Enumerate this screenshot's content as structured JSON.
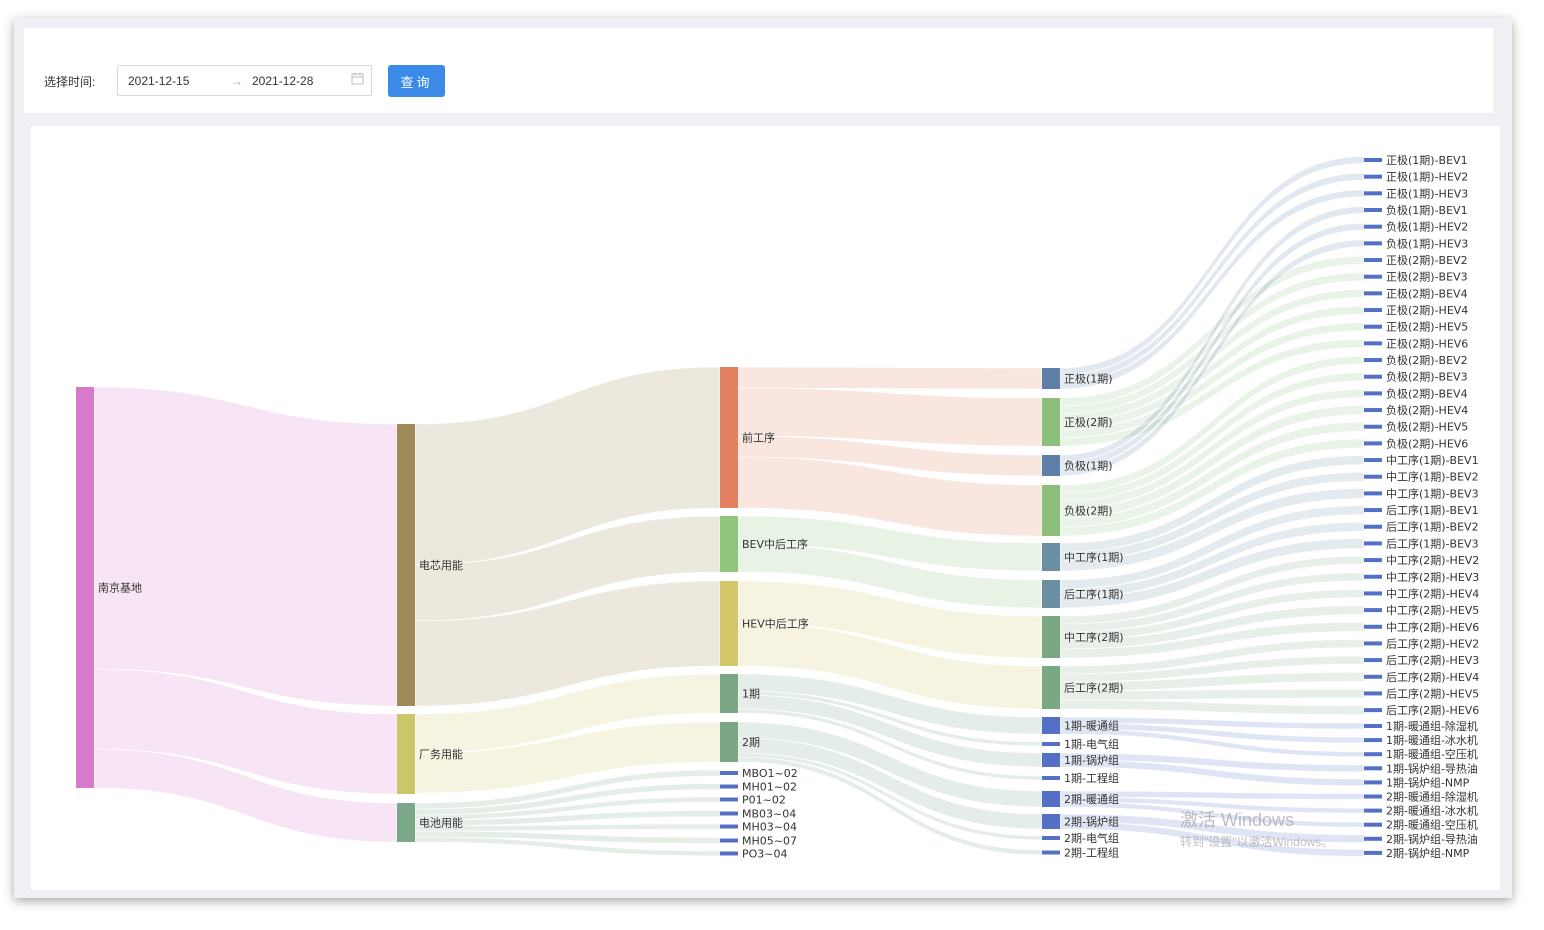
{
  "filter": {
    "label": "选择时间:",
    "start": "2021-12-15",
    "separator": "→",
    "end": "2021-12-28",
    "calendar_icon": "calendar-icon",
    "query_button": "查询"
  },
  "windows_watermark": {
    "line1": "激活 Windows",
    "line2": "转到\"设置\"以激活Windows。"
  },
  "watermark_logo": "SOFT 新打造智慧工厂",
  "chart_data": {
    "type": "sankey",
    "title": "",
    "nodes": [
      {
        "name": "南京基地",
        "level": 0,
        "color": "#d77ac9"
      },
      {
        "name": "电芯用能",
        "level": 1,
        "color": "#a08a5b"
      },
      {
        "name": "厂务用能",
        "level": 1,
        "color": "#c8c76a"
      },
      {
        "name": "电池用能",
        "level": 1,
        "color": "#7aa889"
      },
      {
        "name": "前工序",
        "level": 2,
        "color": "#e2805f"
      },
      {
        "name": "BEV中后工序",
        "level": 2,
        "color": "#8fc57d"
      },
      {
        "name": "HEV中后工序",
        "level": 2,
        "color": "#d2c86a"
      },
      {
        "name": "1期",
        "level": 2,
        "color": "#7aa685"
      },
      {
        "name": "2期",
        "level": 2,
        "color": "#7aa685"
      },
      {
        "name": "MBO1~02",
        "level": 2,
        "color": "#5470c6"
      },
      {
        "name": "MH01~02",
        "level": 2,
        "color": "#5470c6"
      },
      {
        "name": "P01~02",
        "level": 2,
        "color": "#5470c6"
      },
      {
        "name": "MB03~04",
        "level": 2,
        "color": "#5470c6"
      },
      {
        "name": "MH03~04",
        "level": 2,
        "color": "#5470c6"
      },
      {
        "name": "MH05~07",
        "level": 2,
        "color": "#5470c6"
      },
      {
        "name": "PO3~04",
        "level": 2,
        "color": "#5470c6"
      },
      {
        "name": "正极(1期)",
        "level": 3,
        "color": "#5d7fa8"
      },
      {
        "name": "正极(2期)",
        "level": 3,
        "color": "#8dbf7c"
      },
      {
        "name": "负极(1期)",
        "level": 3,
        "color": "#5d7fa8"
      },
      {
        "name": "负极(2期)",
        "level": 3,
        "color": "#8dbf7c"
      },
      {
        "name": "中工序(1期)",
        "level": 3,
        "color": "#6a8fa0"
      },
      {
        "name": "后工序(1期)",
        "level": 3,
        "color": "#6a8fa0"
      },
      {
        "name": "中工序(2期)",
        "level": 3,
        "color": "#7aa882"
      },
      {
        "name": "后工序(2期)",
        "level": 3,
        "color": "#7aa882"
      },
      {
        "name": "1期-暖通组",
        "level": 3,
        "color": "#5470c6"
      },
      {
        "name": "1期-电气组",
        "level": 3,
        "color": "#5470c6"
      },
      {
        "name": "1期-锅炉组",
        "level": 3,
        "color": "#5470c6"
      },
      {
        "name": "1期-工程组",
        "level": 3,
        "color": "#5470c6"
      },
      {
        "name": "2期-暖通组",
        "level": 3,
        "color": "#5470c6"
      },
      {
        "name": "2期-锅炉组",
        "level": 3,
        "color": "#5470c6"
      },
      {
        "name": "2期-电气组",
        "level": 3,
        "color": "#5470c6"
      },
      {
        "name": "2期-工程组",
        "level": 3,
        "color": "#5470c6"
      },
      {
        "name": "正极(1期)-BEV1",
        "level": 4,
        "color": "#5470c6"
      },
      {
        "name": "正极(1期)-HEV2",
        "level": 4,
        "color": "#5470c6"
      },
      {
        "name": "正极(1期)-HEV3",
        "level": 4,
        "color": "#5470c6"
      },
      {
        "name": "负极(1期)-BEV1",
        "level": 4,
        "color": "#5470c6"
      },
      {
        "name": "负极(1期)-HEV2",
        "level": 4,
        "color": "#5470c6"
      },
      {
        "name": "负极(1期)-HEV3",
        "level": 4,
        "color": "#5470c6"
      },
      {
        "name": "正极(2期)-BEV2",
        "level": 4,
        "color": "#5470c6"
      },
      {
        "name": "正极(2期)-BEV3",
        "level": 4,
        "color": "#5470c6"
      },
      {
        "name": "正极(2期)-BEV4",
        "level": 4,
        "color": "#5470c6"
      },
      {
        "name": "正极(2期)-HEV4",
        "level": 4,
        "color": "#5470c6"
      },
      {
        "name": "正极(2期)-HEV5",
        "level": 4,
        "color": "#5470c6"
      },
      {
        "name": "正极(2期)-HEV6",
        "level": 4,
        "color": "#5470c6"
      },
      {
        "name": "负极(2期)-BEV2",
        "level": 4,
        "color": "#5470c6"
      },
      {
        "name": "负极(2期)-BEV3",
        "level": 4,
        "color": "#5470c6"
      },
      {
        "name": "负极(2期)-BEV4",
        "level": 4,
        "color": "#5470c6"
      },
      {
        "name": "负极(2期)-HEV4",
        "level": 4,
        "color": "#5470c6"
      },
      {
        "name": "负极(2期)-HEV5",
        "level": 4,
        "color": "#5470c6"
      },
      {
        "name": "负极(2期)-HEV6",
        "level": 4,
        "color": "#5470c6"
      },
      {
        "name": "中工序(1期)-BEV1",
        "level": 4,
        "color": "#5470c6"
      },
      {
        "name": "中工序(1期)-BEV2",
        "level": 4,
        "color": "#5470c6"
      },
      {
        "name": "中工序(1期)-BEV3",
        "level": 4,
        "color": "#5470c6"
      },
      {
        "name": "后工序(1期)-BEV1",
        "level": 4,
        "color": "#5470c6"
      },
      {
        "name": "后工序(1期)-BEV2",
        "level": 4,
        "color": "#5470c6"
      },
      {
        "name": "后工序(1期)-BEV3",
        "level": 4,
        "color": "#5470c6"
      },
      {
        "name": "中工序(2期)-HEV2",
        "level": 4,
        "color": "#5470c6"
      },
      {
        "name": "中工序(2期)-HEV3",
        "level": 4,
        "color": "#5470c6"
      },
      {
        "name": "中工序(2期)-HEV4",
        "level": 4,
        "color": "#5470c6"
      },
      {
        "name": "中工序(2期)-HEV5",
        "level": 4,
        "color": "#5470c6"
      },
      {
        "name": "中工序(2期)-HEV6",
        "level": 4,
        "color": "#5470c6"
      },
      {
        "name": "后工序(2期)-HEV2",
        "level": 4,
        "color": "#5470c6"
      },
      {
        "name": "后工序(2期)-HEV3",
        "level": 4,
        "color": "#5470c6"
      },
      {
        "name": "后工序(2期)-HEV4",
        "level": 4,
        "color": "#5470c6"
      },
      {
        "name": "后工序(2期)-HEV5",
        "level": 4,
        "color": "#5470c6"
      },
      {
        "name": "后工序(2期)-HEV6",
        "level": 4,
        "color": "#5470c6"
      },
      {
        "name": "1期-暖通组-除湿机",
        "level": 4,
        "color": "#5470c6"
      },
      {
        "name": "1期-暖通组-冰水机",
        "level": 4,
        "color": "#5470c6"
      },
      {
        "name": "1期-暖通组-空压机",
        "level": 4,
        "color": "#5470c6"
      },
      {
        "name": "1期-锅炉组-导热油",
        "level": 4,
        "color": "#5470c6"
      },
      {
        "name": "1期-锅炉组-NMP",
        "level": 4,
        "color": "#5470c6"
      },
      {
        "name": "2期-暖通组-除湿机",
        "level": 4,
        "color": "#5470c6"
      },
      {
        "name": "2期-暖通组-冰水机",
        "level": 4,
        "color": "#5470c6"
      },
      {
        "name": "2期-暖通组-空压机",
        "level": 4,
        "color": "#5470c6"
      },
      {
        "name": "2期-锅炉组-导热油",
        "level": 4,
        "color": "#5470c6"
      },
      {
        "name": "2期-锅炉组-NMP",
        "level": 4,
        "color": "#5470c6"
      }
    ],
    "links": [
      [
        "南京基地",
        "电芯用能",
        282
      ],
      [
        "南京基地",
        "厂务用能",
        80
      ],
      [
        "南京基地",
        "电池用能",
        39
      ],
      [
        "电芯用能",
        "前工序",
        141
      ],
      [
        "电芯用能",
        "BEV中后工序",
        56
      ],
      [
        "电芯用能",
        "HEV中后工序",
        85
      ],
      [
        "厂务用能",
        "1期",
        39
      ],
      [
        "厂务用能",
        "2期",
        40
      ],
      [
        "电池用能",
        "MBO1~02",
        6
      ],
      [
        "电池用能",
        "MH01~02",
        6
      ],
      [
        "电池用能",
        "P01~02",
        5
      ],
      [
        "电池用能",
        "MB03~04",
        6
      ],
      [
        "电池用能",
        "MH03~04",
        5
      ],
      [
        "电池用能",
        "MH05~07",
        6
      ],
      [
        "电池用能",
        "PO3~04",
        5
      ],
      [
        "前工序",
        "正极(1期)",
        21
      ],
      [
        "前工序",
        "正极(2期)",
        48
      ],
      [
        "前工序",
        "负极(1期)",
        21
      ],
      [
        "前工序",
        "负极(2期)",
        51
      ],
      [
        "BEV中后工序",
        "中工序(1期)",
        28
      ],
      [
        "BEV中后工序",
        "后工序(1期)",
        28
      ],
      [
        "HEV中后工序",
        "中工序(2期)",
        42
      ],
      [
        "HEV中后工序",
        "后工序(2期)",
        43
      ],
      [
        "1期",
        "1期-暖通组",
        17
      ],
      [
        "1期",
        "1期-电气组",
        4
      ],
      [
        "1期",
        "1期-锅炉组",
        14
      ],
      [
        "1期",
        "1期-工程组",
        4
      ],
      [
        "2期",
        "2期-暖通组",
        16
      ],
      [
        "2期",
        "2期-锅炉组",
        15
      ],
      [
        "2期",
        "2期-电气组",
        4
      ],
      [
        "2期",
        "2期-工程组",
        5
      ],
      [
        "正极(1期)",
        "正极(1期)-BEV1",
        7
      ],
      [
        "正极(1期)",
        "正极(1期)-HEV2",
        7
      ],
      [
        "正极(1期)",
        "正极(1期)-HEV3",
        7
      ],
      [
        "正极(2期)",
        "正极(2期)-BEV2",
        8
      ],
      [
        "正极(2期)",
        "正极(2期)-BEV3",
        8
      ],
      [
        "正极(2期)",
        "正极(2期)-BEV4",
        8
      ],
      [
        "正极(2期)",
        "正极(2期)-HEV4",
        8
      ],
      [
        "正极(2期)",
        "正极(2期)-HEV5",
        8
      ],
      [
        "正极(2期)",
        "正极(2期)-HEV6",
        8
      ],
      [
        "负极(1期)",
        "负极(1期)-BEV1",
        7
      ],
      [
        "负极(1期)",
        "负极(1期)-HEV2",
        7
      ],
      [
        "负极(1期)",
        "负极(1期)-HEV3",
        7
      ],
      [
        "负极(2期)",
        "负极(2期)-BEV2",
        8
      ],
      [
        "负极(2期)",
        "负极(2期)-BEV3",
        8
      ],
      [
        "负极(2期)",
        "负极(2期)-BEV4",
        8
      ],
      [
        "负极(2期)",
        "负极(2期)-HEV4",
        9
      ],
      [
        "负极(2期)",
        "负极(2期)-HEV5",
        9
      ],
      [
        "负极(2期)",
        "负极(2期)-HEV6",
        9
      ],
      [
        "中工序(1期)",
        "中工序(1期)-BEV1",
        9
      ],
      [
        "中工序(1期)",
        "中工序(1期)-BEV2",
        9
      ],
      [
        "中工序(1期)",
        "中工序(1期)-BEV3",
        10
      ],
      [
        "后工序(1期)",
        "后工序(1期)-BEV1",
        9
      ],
      [
        "后工序(1期)",
        "后工序(1期)-BEV2",
        9
      ],
      [
        "后工序(1期)",
        "后工序(1期)-BEV3",
        10
      ],
      [
        "中工序(2期)",
        "中工序(2期)-HEV2",
        8
      ],
      [
        "中工序(2期)",
        "中工序(2期)-HEV3",
        8
      ],
      [
        "中工序(2期)",
        "中工序(2期)-HEV4",
        8
      ],
      [
        "中工序(2期)",
        "中工序(2期)-HEV5",
        9
      ],
      [
        "中工序(2期)",
        "中工序(2期)-HEV6",
        9
      ],
      [
        "后工序(2期)",
        "后工序(2期)-HEV2",
        8
      ],
      [
        "后工序(2期)",
        "后工序(2期)-HEV3",
        8
      ],
      [
        "后工序(2期)",
        "后工序(2期)-HEV4",
        9
      ],
      [
        "后工序(2期)",
        "后工序(2期)-HEV5",
        9
      ],
      [
        "后工序(2期)",
        "后工序(2期)-HEV6",
        9
      ],
      [
        "1期-暖通组",
        "1期-暖通组-除湿机",
        6
      ],
      [
        "1期-暖通组",
        "1期-暖通组-冰水机",
        6
      ],
      [
        "1期-暖通组",
        "1期-暖通组-空压机",
        5
      ],
      [
        "1期-锅炉组",
        "1期-锅炉组-导热油",
        7
      ],
      [
        "1期-锅炉组",
        "1期-锅炉组-NMP",
        7
      ],
      [
        "2期-暖通组",
        "2期-暖通组-除湿机",
        6
      ],
      [
        "2期-暖通组",
        "2期-暖通组-冰水机",
        5
      ],
      [
        "2期-暖通组",
        "2期-暖通组-空压机",
        5
      ],
      [
        "2期-锅炉组",
        "2期-锅炉组-导热油",
        8
      ],
      [
        "2期-锅炉组",
        "2期-锅炉组-NMP",
        7
      ]
    ]
  }
}
